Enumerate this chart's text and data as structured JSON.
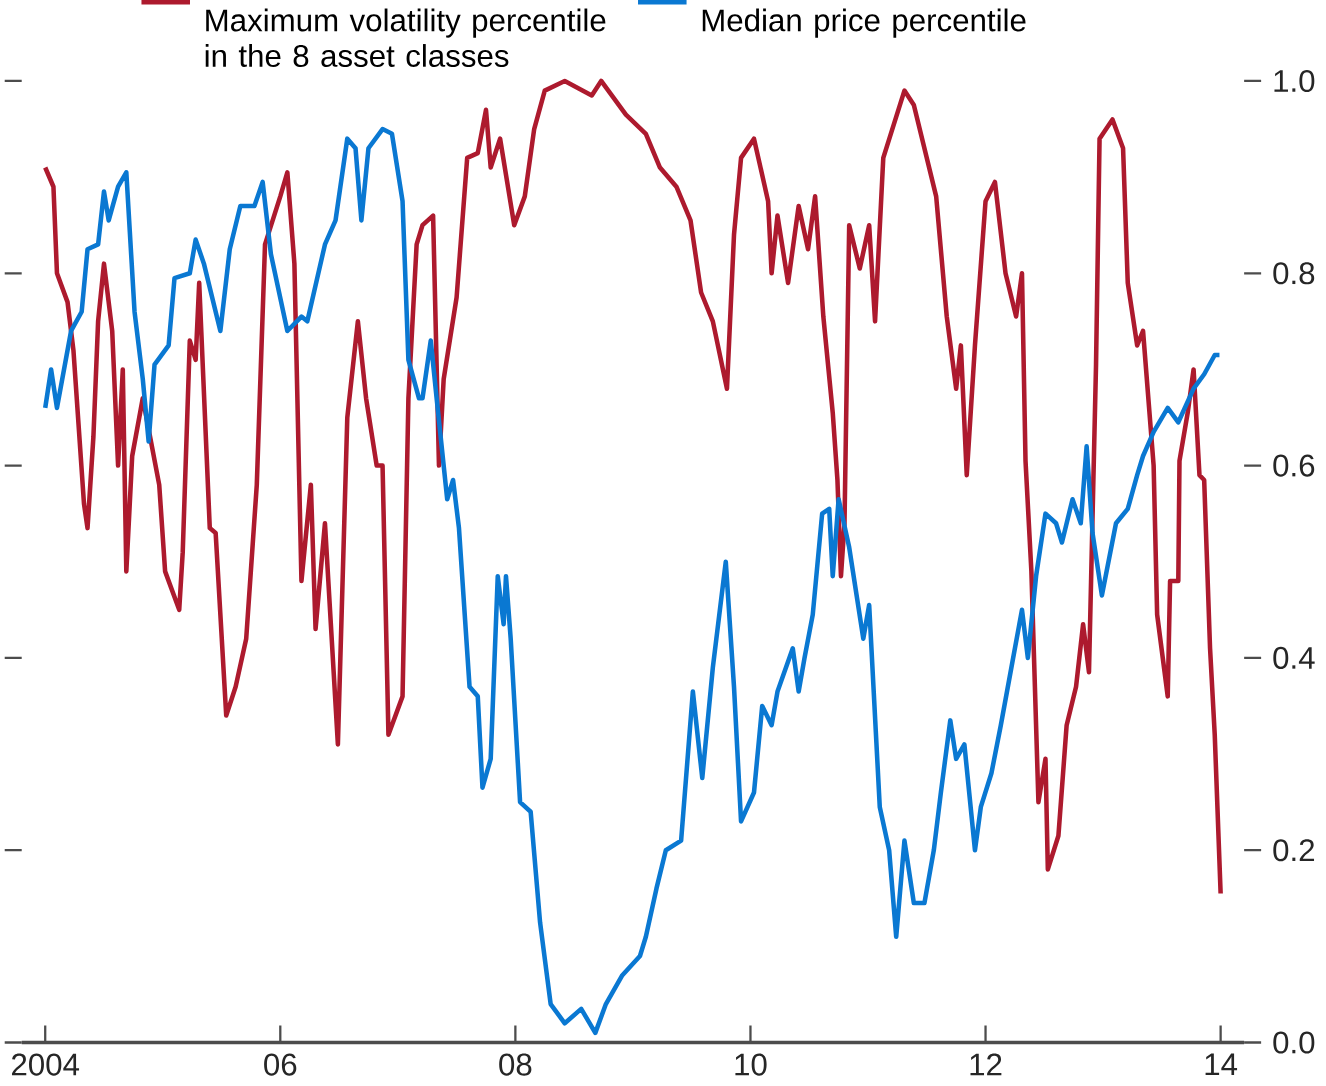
{
  "chart_data": {
    "type": "line",
    "xlim": [
      2003.8,
      2014.2
    ],
    "xticks": [
      {
        "value": 2004,
        "label": "2004"
      },
      {
        "value": 2006,
        "label": "06"
      },
      {
        "value": 2008,
        "label": "08"
      },
      {
        "value": 2010,
        "label": "10"
      },
      {
        "value": 2012,
        "label": "12"
      },
      {
        "value": 2014,
        "label": "14"
      }
    ],
    "ylim": [
      0,
      1.0
    ],
    "yticks": [
      {
        "value": 0,
        "label": "0.0"
      },
      {
        "value": 0.2,
        "label": "0.2"
      },
      {
        "value": 0.4,
        "label": "0.4"
      },
      {
        "value": 0.6,
        "label": "0.6"
      },
      {
        "value": 0.8,
        "label": "0.8"
      },
      {
        "value": 1.0,
        "label": "1.0"
      }
    ],
    "legend": "top",
    "grid": false,
    "series": [
      {
        "name": "Maximum volatility percentile in the 8 asset classes",
        "color": "#ad1a2e",
        "x": [
          2004.0,
          2004.07,
          2004.1,
          2004.19,
          2004.24,
          2004.33,
          2004.36,
          2004.41,
          2004.45,
          2004.5,
          2004.57,
          2004.62,
          2004.66,
          2004.69,
          2004.74,
          2004.83,
          2004.97,
          2005.02,
          2005.14,
          2005.17,
          2005.23,
          2005.28,
          2005.31,
          2005.4,
          2005.45,
          2005.54,
          2005.62,
          2005.71,
          2005.8,
          2005.87,
          2006.0,
          2006.06,
          2006.12,
          2006.18,
          2006.26,
          2006.3,
          2006.38,
          2006.49,
          2006.57,
          2006.66,
          2006.73,
          2006.82,
          2006.87,
          2006.92,
          2007.04,
          2007.09,
          2007.16,
          2007.21,
          2007.3,
          2007.35,
          2007.39,
          2007.5,
          2007.59,
          2007.68,
          2007.75,
          2007.79,
          2007.87,
          2007.99,
          2008.08,
          2008.16,
          2008.25,
          2008.42,
          2008.65,
          2008.73,
          2008.94,
          2009.11,
          2009.23,
          2009.37,
          2009.49,
          2009.58,
          2009.68,
          2009.8,
          2009.86,
          2009.92,
          2010.03,
          2010.15,
          2010.18,
          2010.23,
          2010.32,
          2010.41,
          2010.49,
          2010.55,
          2010.62,
          2010.7,
          2010.74,
          2010.77,
          2010.8,
          2010.84,
          2010.93,
          2011.01,
          2011.06,
          2011.13,
          2011.31,
          2011.39,
          2011.58,
          2011.67,
          2011.75,
          2011.79,
          2011.84,
          2011.91,
          2012.0,
          2012.08,
          2012.17,
          2012.26,
          2012.31,
          2012.34,
          2012.39,
          2012.45,
          2012.51,
          2012.53,
          2012.62,
          2012.69,
          2012.77,
          2012.83,
          2012.88,
          2012.94,
          2012.97,
          2013.08,
          2013.17,
          2013.21,
          2013.29,
          2013.34,
          2013.43,
          2013.46,
          2013.55,
          2013.57,
          2013.64,
          2013.65,
          2013.72,
          2013.77,
          2013.82,
          2013.86,
          2013.91,
          2013.95,
          2014.0
        ],
        "values": [
          0.91,
          0.89,
          0.8,
          0.77,
          0.72,
          0.56,
          0.535,
          0.63,
          0.75,
          0.81,
          0.74,
          0.6,
          0.7,
          0.49,
          0.61,
          0.67,
          0.58,
          0.49,
          0.45,
          0.51,
          0.73,
          0.71,
          0.79,
          0.535,
          0.53,
          0.34,
          0.37,
          0.42,
          0.58,
          0.83,
          0.88,
          0.905,
          0.81,
          0.48,
          0.58,
          0.43,
          0.54,
          0.31,
          0.65,
          0.75,
          0.67,
          0.6,
          0.6,
          0.32,
          0.36,
          0.67,
          0.83,
          0.85,
          0.86,
          0.6,
          0.69,
          0.775,
          0.92,
          0.925,
          0.97,
          0.91,
          0.94,
          0.85,
          0.88,
          0.95,
          0.99,
          1.0,
          0.985,
          1.0,
          0.965,
          0.945,
          0.91,
          0.89,
          0.855,
          0.78,
          0.75,
          0.68,
          0.84,
          0.92,
          0.94,
          0.875,
          0.8,
          0.86,
          0.79,
          0.87,
          0.825,
          0.88,
          0.755,
          0.655,
          0.585,
          0.485,
          0.54,
          0.85,
          0.805,
          0.85,
          0.75,
          0.92,
          0.99,
          0.975,
          0.88,
          0.755,
          0.68,
          0.725,
          0.59,
          0.725,
          0.875,
          0.895,
          0.8,
          0.755,
          0.8,
          0.605,
          0.49,
          0.25,
          0.295,
          0.18,
          0.215,
          0.33,
          0.37,
          0.435,
          0.385,
          0.705,
          0.94,
          0.96,
          0.93,
          0.79,
          0.725,
          0.74,
          0.6,
          0.445,
          0.36,
          0.48,
          0.48,
          0.605,
          0.655,
          0.7,
          0.59,
          0.585,
          0.41,
          0.32,
          0.155
        ]
      },
      {
        "name": "Median price percentile",
        "color": "#0a78d2",
        "x": [
          2004.0,
          2004.05,
          2004.1,
          2004.22,
          2004.31,
          2004.36,
          2004.45,
          2004.5,
          2004.54,
          2004.62,
          2004.69,
          2004.76,
          2004.83,
          2004.88,
          2004.93,
          2005.05,
          2005.1,
          2005.23,
          2005.28,
          2005.35,
          2005.49,
          2005.57,
          2005.66,
          2005.78,
          2005.85,
          2005.92,
          2006.06,
          2006.18,
          2006.23,
          2006.38,
          2006.47,
          2006.57,
          2006.64,
          2006.69,
          2006.75,
          2006.87,
          2006.95,
          2007.04,
          2007.09,
          2007.18,
          2007.21,
          2007.28,
          2007.33,
          2007.42,
          2007.47,
          2007.52,
          2007.61,
          2007.68,
          2007.72,
          2007.79,
          2007.85,
          2007.9,
          2007.92,
          2007.96,
          2008.04,
          2008.13,
          2008.21,
          2008.3,
          2008.42,
          2008.56,
          2008.68,
          2008.77,
          2008.91,
          2009.06,
          2009.11,
          2009.2,
          2009.28,
          2009.41,
          2009.51,
          2009.59,
          2009.68,
          2009.79,
          2009.86,
          2009.92,
          2010.03,
          2010.1,
          2010.18,
          2010.23,
          2010.36,
          2010.41,
          2010.46,
          2010.53,
          2010.61,
          2010.67,
          2010.7,
          2010.75,
          2010.84,
          2010.96,
          2011.01,
          2011.1,
          2011.18,
          2011.24,
          2011.31,
          2011.39,
          2011.48,
          2011.56,
          2011.62,
          2011.7,
          2011.75,
          2011.82,
          2011.91,
          2011.96,
          2012.05,
          2012.13,
          2012.22,
          2012.31,
          2012.36,
          2012.43,
          2012.51,
          2012.6,
          2012.65,
          2012.74,
          2012.81,
          2012.86,
          2012.91,
          2012.99,
          2013.11,
          2013.21,
          2013.29,
          2013.34,
          2013.43,
          2013.55,
          2013.64,
          2013.77,
          2013.86,
          2013.95,
          2013.99
        ],
        "values": [
          0.66,
          0.7,
          0.66,
          0.74,
          0.76,
          0.825,
          0.83,
          0.885,
          0.855,
          0.89,
          0.905,
          0.76,
          0.69,
          0.625,
          0.705,
          0.725,
          0.795,
          0.8,
          0.835,
          0.81,
          0.74,
          0.825,
          0.87,
          0.87,
          0.895,
          0.82,
          0.74,
          0.755,
          0.75,
          0.83,
          0.855,
          0.94,
          0.93,
          0.855,
          0.93,
          0.95,
          0.945,
          0.875,
          0.71,
          0.67,
          0.67,
          0.73,
          0.67,
          0.565,
          0.585,
          0.535,
          0.37,
          0.36,
          0.265,
          0.295,
          0.485,
          0.435,
          0.485,
          0.42,
          0.25,
          0.24,
          0.125,
          0.04,
          0.02,
          0.035,
          0.01,
          0.04,
          0.07,
          0.09,
          0.11,
          0.16,
          0.2,
          0.21,
          0.365,
          0.275,
          0.39,
          0.5,
          0.37,
          0.23,
          0.26,
          0.35,
          0.33,
          0.365,
          0.41,
          0.365,
          0.4,
          0.445,
          0.55,
          0.555,
          0.485,
          0.565,
          0.515,
          0.42,
          0.455,
          0.245,
          0.2,
          0.11,
          0.21,
          0.145,
          0.145,
          0.2,
          0.26,
          0.335,
          0.295,
          0.31,
          0.2,
          0.245,
          0.28,
          0.33,
          0.39,
          0.45,
          0.4,
          0.485,
          0.55,
          0.54,
          0.52,
          0.565,
          0.54,
          0.62,
          0.53,
          0.465,
          0.54,
          0.555,
          0.59,
          0.61,
          0.635,
          0.66,
          0.645,
          0.68,
          0.695,
          0.715,
          0.715
        ]
      }
    ]
  }
}
